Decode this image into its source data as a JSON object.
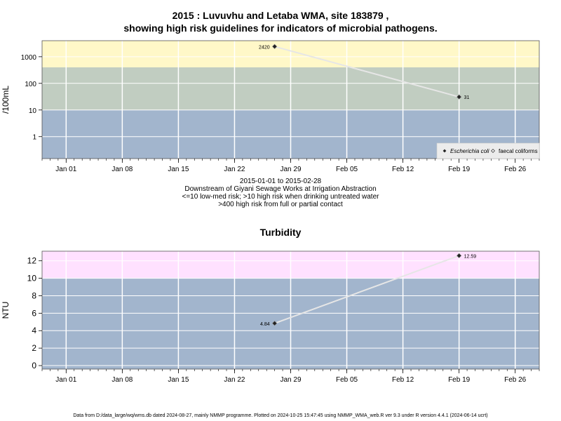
{
  "header": {
    "title_line1": "2015 : Luvuvhu and Letaba WMA, site 183879 ,",
    "title_line2": "showing high risk guidelines for indicators of microbial pathogens."
  },
  "chart_data": [
    {
      "type": "scatter",
      "ylabel": "/100mL",
      "yscale": "log",
      "yticks": [
        1,
        10,
        100,
        1000
      ],
      "ylim": [
        0.15,
        4000
      ],
      "xticks": [
        "Jan 01",
        "Jan 08",
        "Jan 15",
        "Jan 22",
        "Jan 29",
        "Feb 05",
        "Feb 12",
        "Feb 19",
        "Feb 26"
      ],
      "xlim": [
        "2014-12-29",
        "2015-03-01"
      ],
      "bands": [
        {
          "from": 0.15,
          "to": 10,
          "color": "#a2b5cd"
        },
        {
          "from": 10,
          "to": 400,
          "color": "#c1cdc1"
        },
        {
          "from": 400,
          "to": 4000,
          "color": "#fff8c8"
        }
      ],
      "series": [
        {
          "name": "Escherichia coli",
          "marker": "filled-diamond",
          "x": [
            "2015-01-27",
            "2015-02-19"
          ],
          "y": [
            2420,
            31
          ],
          "labels": [
            "2420",
            "31"
          ]
        },
        {
          "name": "faecal coliforms",
          "marker": "open-diamond",
          "x": [],
          "y": []
        }
      ],
      "legend": "bottom-right",
      "caption": [
        "2015-01-01 to 2015-02-28",
        "Downstream of Giyani Sewage Works at Irrigation Abstraction",
        "<=10 low-med risk; >10 high risk when drinking untreated water",
        ">400 high risk from full or partial contact"
      ]
    },
    {
      "type": "scatter",
      "title": "Turbidity",
      "ylabel": "NTU",
      "yscale": "linear",
      "yticks": [
        0,
        2,
        4,
        6,
        8,
        10,
        12
      ],
      "ylim": [
        -0.4,
        13.1
      ],
      "xticks": [
        "Jan 01",
        "Jan 08",
        "Jan 15",
        "Jan 22",
        "Jan 29",
        "Feb 05",
        "Feb 12",
        "Feb 19",
        "Feb 26"
      ],
      "xlim": [
        "2014-12-29",
        "2015-03-01"
      ],
      "bands": [
        {
          "from": -0.4,
          "to": 10,
          "color": "#a2b5cd"
        },
        {
          "from": 10,
          "to": 13.1,
          "color": "#ffe1ff"
        }
      ],
      "series": [
        {
          "marker": "filled-diamond",
          "x": [
            "2015-01-27",
            "2015-02-19"
          ],
          "y": [
            4.84,
            12.59
          ],
          "labels": [
            "4.84",
            "12.59"
          ]
        }
      ]
    }
  ],
  "footer": "Data from D:/data_large/wq/wms.db dated 2024-08-27, mainly NMMP programme. Plotted on 2024-10-25 15:47:45 using NMMP_WMA_web.R ver 9.3 under R version 4.4.1 (2024-06-14 ucrt)"
}
